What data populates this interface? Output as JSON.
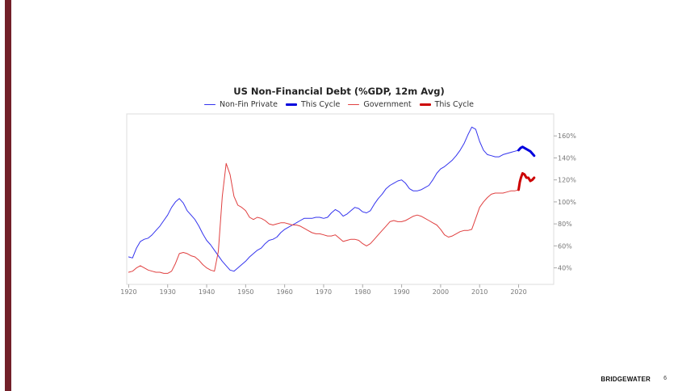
{
  "chart_data": {
    "type": "line",
    "title": "US Non-Financial Debt (%GDP, 12m Avg)",
    "xlim": [
      1919.5,
      2029
    ],
    "ylim": [
      25,
      180
    ],
    "x_ticks": [
      1920,
      1930,
      1940,
      1950,
      1960,
      1970,
      1980,
      1990,
      2000,
      2010,
      2020
    ],
    "y_ticks": [
      40,
      60,
      80,
      100,
      120,
      140,
      160
    ],
    "y_tick_suffix": "%",
    "y_axis_side": "right",
    "grid": false,
    "legend_position": "top-center",
    "series": [
      {
        "name": "Non-Fin Private",
        "color": "#3333ee",
        "width": 1,
        "x": [
          1920,
          1921,
          1922,
          1923,
          1924,
          1925,
          1926,
          1927,
          1928,
          1929,
          1930,
          1931,
          1932,
          1933,
          1934,
          1935,
          1936,
          1937,
          1938,
          1939,
          1940,
          1941,
          1942,
          1943,
          1944,
          1945,
          1946,
          1947,
          1948,
          1949,
          1950,
          1951,
          1952,
          1953,
          1954,
          1955,
          1956,
          1957,
          1958,
          1959,
          1960,
          1961,
          1962,
          1963,
          1964,
          1965,
          1966,
          1967,
          1968,
          1969,
          1970,
          1971,
          1972,
          1973,
          1974,
          1975,
          1976,
          1977,
          1978,
          1979,
          1980,
          1981,
          1982,
          1983,
          1984,
          1985,
          1986,
          1987,
          1988,
          1989,
          1990,
          1991,
          1992,
          1993,
          1994,
          1995,
          1996,
          1997,
          1998,
          1999,
          2000,
          2001,
          2002,
          2003,
          2004,
          2005,
          2006,
          2007,
          2008,
          2009,
          2010,
          2011,
          2012,
          2013,
          2014,
          2015,
          2016,
          2017,
          2018,
          2019,
          2020
        ],
        "y": [
          50,
          49,
          58,
          64,
          66,
          67,
          70,
          74,
          78,
          83,
          88,
          95,
          100,
          103,
          99,
          92,
          88,
          84,
          78,
          71,
          65,
          61,
          56,
          51,
          46,
          42,
          38,
          37,
          40,
          43,
          46,
          50,
          53,
          56,
          58,
          62,
          65,
          66,
          68,
          72,
          75,
          77,
          79,
          81,
          83,
          85,
          85,
          85,
          86,
          86,
          85,
          86,
          90,
          93,
          91,
          87,
          89,
          92,
          95,
          94,
          91,
          90,
          92,
          98,
          103,
          107,
          112,
          115,
          117,
          119,
          120,
          117,
          112,
          110,
          110,
          111,
          113,
          115,
          120,
          126,
          130,
          132,
          135,
          138,
          142,
          147,
          153,
          161,
          168,
          166,
          155,
          147,
          143,
          142,
          141,
          141,
          143,
          144,
          145,
          146,
          147
        ]
      },
      {
        "name": "This Cycle",
        "color": "#0000dd",
        "width": 3,
        "x": [
          2020,
          2020.5,
          2021,
          2021.5,
          2022,
          2022.5,
          2023,
          2023.5,
          2024
        ],
        "y": [
          147,
          149,
          150,
          149,
          148,
          147,
          146,
          144,
          142
        ]
      },
      {
        "name": "Government",
        "color": "#e04040",
        "width": 1,
        "x": [
          1920,
          1921,
          1922,
          1923,
          1924,
          1925,
          1926,
          1927,
          1928,
          1929,
          1930,
          1931,
          1932,
          1933,
          1934,
          1935,
          1936,
          1937,
          1938,
          1939,
          1940,
          1941,
          1942,
          1943,
          1944,
          1945,
          1946,
          1947,
          1948,
          1949,
          1950,
          1951,
          1952,
          1953,
          1954,
          1955,
          1956,
          1957,
          1958,
          1959,
          1960,
          1961,
          1962,
          1963,
          1964,
          1965,
          1966,
          1967,
          1968,
          1969,
          1970,
          1971,
          1972,
          1973,
          1974,
          1975,
          1976,
          1977,
          1978,
          1979,
          1980,
          1981,
          1982,
          1983,
          1984,
          1985,
          1986,
          1987,
          1988,
          1989,
          1990,
          1991,
          1992,
          1993,
          1994,
          1995,
          1996,
          1997,
          1998,
          1999,
          2000,
          2001,
          2002,
          2003,
          2004,
          2005,
          2006,
          2007,
          2008,
          2009,
          2010,
          2011,
          2012,
          2013,
          2014,
          2015,
          2016,
          2017,
          2018,
          2019,
          2020
        ],
        "y": [
          36,
          37,
          40,
          42,
          40,
          38,
          37,
          36,
          36,
          35,
          35,
          37,
          44,
          53,
          54,
          53,
          51,
          50,
          47,
          43,
          40,
          38,
          37,
          55,
          105,
          135,
          125,
          105,
          97,
          95,
          92,
          86,
          84,
          86,
          85,
          83,
          80,
          79,
          80,
          81,
          81,
          80,
          79,
          79,
          78,
          76,
          74,
          72,
          71,
          71,
          70,
          69,
          69,
          70,
          67,
          64,
          65,
          66,
          66,
          65,
          62,
          60,
          62,
          66,
          70,
          74,
          78,
          82,
          83,
          82,
          82,
          83,
          85,
          87,
          88,
          87,
          85,
          83,
          81,
          79,
          75,
          70,
          68,
          69,
          71,
          73,
          74,
          74,
          75,
          85,
          95,
          100,
          104,
          107,
          108,
          108,
          108,
          109,
          110,
          110,
          111
        ]
      },
      {
        "name": "This Cycle",
        "color": "#cc0000",
        "width": 3,
        "x": [
          2020,
          2020.3,
          2020.6,
          2021,
          2021.5,
          2022,
          2022.5,
          2023,
          2023.5,
          2024
        ],
        "y": [
          111,
          118,
          122,
          126,
          125,
          122,
          122,
          119,
          120,
          122
        ]
      }
    ]
  },
  "footer": {
    "brand": "BRIDGEWATER",
    "page_number": "6"
  }
}
